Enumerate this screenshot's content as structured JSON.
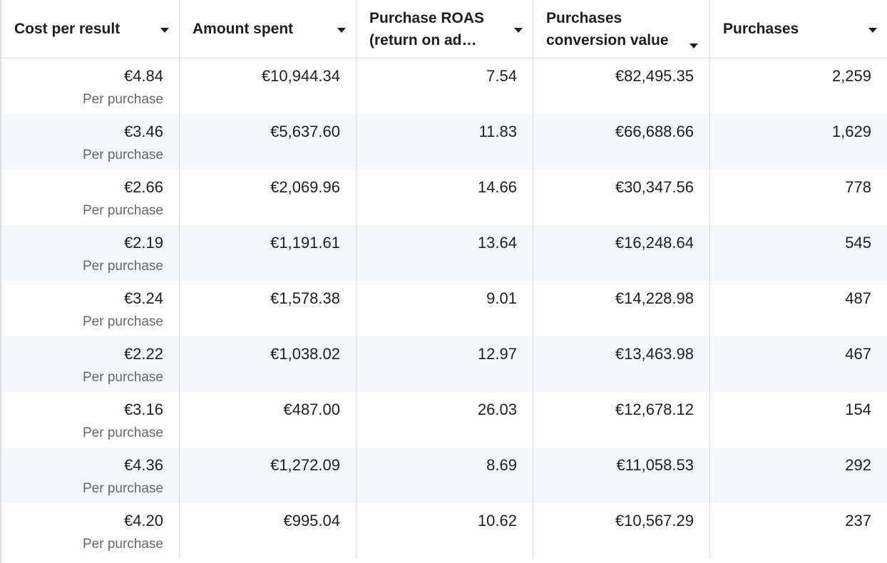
{
  "columns": [
    {
      "label": "Cost per result"
    },
    {
      "label": "Amount spent"
    },
    {
      "label_line1": "Purchase ROAS",
      "label_line2": "(return on ad…"
    },
    {
      "label_line1": "Purchases",
      "label_line2": "conversion value"
    },
    {
      "label": "Purchases"
    }
  ],
  "rows": [
    {
      "cost": "€4.84",
      "cost_sub": "Per purchase",
      "spent": "€10,944.34",
      "roas": "7.54",
      "conv_value": "€82,495.35",
      "purchases": "2,259"
    },
    {
      "cost": "€3.46",
      "cost_sub": "Per purchase",
      "spent": "€5,637.60",
      "roas": "11.83",
      "conv_value": "€66,688.66",
      "purchases": "1,629"
    },
    {
      "cost": "€2.66",
      "cost_sub": "Per purchase",
      "spent": "€2,069.96",
      "roas": "14.66",
      "conv_value": "€30,347.56",
      "purchases": "778"
    },
    {
      "cost": "€2.19",
      "cost_sub": "Per purchase",
      "spent": "€1,191.61",
      "roas": "13.64",
      "conv_value": "€16,248.64",
      "purchases": "545"
    },
    {
      "cost": "€3.24",
      "cost_sub": "Per purchase",
      "spent": "€1,578.38",
      "roas": "9.01",
      "conv_value": "€14,228.98",
      "purchases": "487"
    },
    {
      "cost": "€2.22",
      "cost_sub": "Per purchase",
      "spent": "€1,038.02",
      "roas": "12.97",
      "conv_value": "€13,463.98",
      "purchases": "467"
    },
    {
      "cost": "€3.16",
      "cost_sub": "Per purchase",
      "spent": "€487.00",
      "roas": "26.03",
      "conv_value": "€12,678.12",
      "purchases": "154"
    },
    {
      "cost": "€4.36",
      "cost_sub": "Per purchase",
      "spent": "€1,272.09",
      "roas": "8.69",
      "conv_value": "€11,058.53",
      "purchases": "292"
    },
    {
      "cost": "€4.20",
      "cost_sub": "Per purchase",
      "spent": "€995.04",
      "roas": "10.62",
      "conv_value": "€10,567.29",
      "purchases": "237"
    }
  ],
  "icons": {
    "sort": "caret-down-icon"
  }
}
